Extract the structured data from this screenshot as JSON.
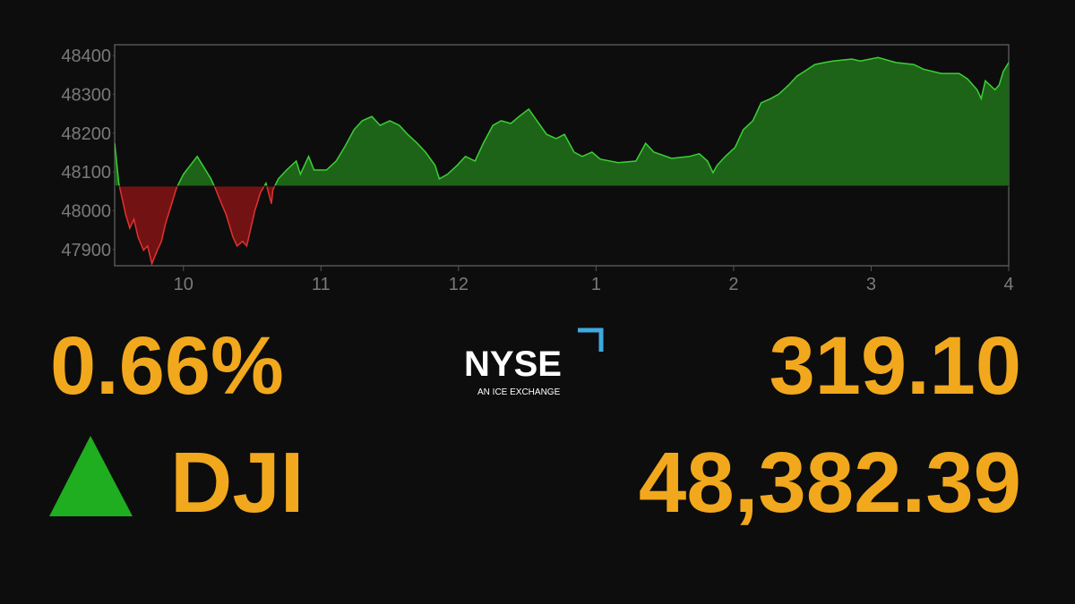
{
  "chart_data": {
    "type": "area",
    "x": [
      9.5,
      9.53,
      9.58,
      9.61,
      9.64,
      9.67,
      9.71,
      9.74,
      9.77,
      9.81,
      9.84,
      9.87,
      9.9,
      9.95,
      10.0,
      10.05,
      10.1,
      10.14,
      10.2,
      10.23,
      10.27,
      10.31,
      10.36,
      10.39,
      10.43,
      10.46,
      10.49,
      10.52,
      10.56,
      10.6,
      10.64,
      10.65,
      10.69,
      10.75,
      10.82,
      10.85,
      10.91,
      10.95,
      11.04,
      11.11,
      11.17,
      11.24,
      11.3,
      11.37,
      11.43,
      11.5,
      11.57,
      11.63,
      11.7,
      11.76,
      11.83,
      11.86,
      11.92,
      11.99,
      12.05,
      12.12,
      12.18,
      12.25,
      12.31,
      12.38,
      12.44,
      12.51,
      12.57,
      12.64,
      12.71,
      12.77,
      12.84,
      12.9,
      12.97,
      13.03,
      13.16,
      13.29,
      13.36,
      13.42,
      13.55,
      13.68,
      13.75,
      13.81,
      13.85,
      13.88,
      13.94,
      14.01,
      14.07,
      14.14,
      14.2,
      14.27,
      14.33,
      14.4,
      14.46,
      14.53,
      14.59,
      14.66,
      14.72,
      14.86,
      14.92,
      15.05,
      15.18,
      15.31,
      15.38,
      15.51,
      15.64,
      15.7,
      15.77,
      15.8,
      15.83,
      15.9,
      15.93,
      15.96,
      16.0
    ],
    "values": [
      48174,
      48071,
      47990,
      47955,
      47978,
      47932,
      47898,
      47909,
      47863,
      47898,
      47921,
      47967,
      48001,
      48059,
      48094,
      48117,
      48140,
      48117,
      48082,
      48059,
      48024,
      47990,
      47932,
      47909,
      47921,
      47909,
      47955,
      48001,
      48047,
      48071,
      48018,
      48054,
      48082,
      48105,
      48128,
      48094,
      48140,
      48105,
      48105,
      48128,
      48163,
      48209,
      48232,
      48243,
      48220,
      48232,
      48220,
      48197,
      48174,
      48151,
      48117,
      48082,
      48094,
      48117,
      48140,
      48128,
      48174,
      48220,
      48232,
      48225,
      48243,
      48262,
      48232,
      48197,
      48186,
      48197,
      48151,
      48140,
      48151,
      48133,
      48124,
      48128,
      48174,
      48151,
      48135,
      48140,
      48147,
      48128,
      48098,
      48117,
      48140,
      48163,
      48209,
      48232,
      48278,
      48289,
      48301,
      48324,
      48347,
      48363,
      48377,
      48382,
      48386,
      48391,
      48386,
      48395,
      48382,
      48377,
      48365,
      48354,
      48354,
      48340,
      48312,
      48289,
      48335,
      48312,
      48324,
      48359,
      48382
    ],
    "baseline": 48063.29,
    "up_color": "#3ccf36",
    "up_fill": "#1d6418",
    "down_color": "#e03232",
    "down_fill": "#731212",
    "xlim": [
      9.5,
      16
    ],
    "ylim": [
      47858,
      48428
    ],
    "xticks": [
      10,
      11,
      12,
      {
        "value": 13,
        "label": "1"
      },
      {
        "value": 14,
        "label": "2"
      },
      {
        "value": 15,
        "label": "3"
      },
      {
        "value": 16,
        "label": "4"
      }
    ],
    "yticks": [
      47900,
      48000,
      48100,
      48200,
      48300,
      48400
    ]
  },
  "ticker": {
    "change_percent": "0.66%",
    "symbol": "DJI",
    "change": "319.10",
    "value": "48,382.39"
  },
  "logo": {
    "name": "NYSE",
    "tagline": "AN ICE EXCHANGE"
  }
}
